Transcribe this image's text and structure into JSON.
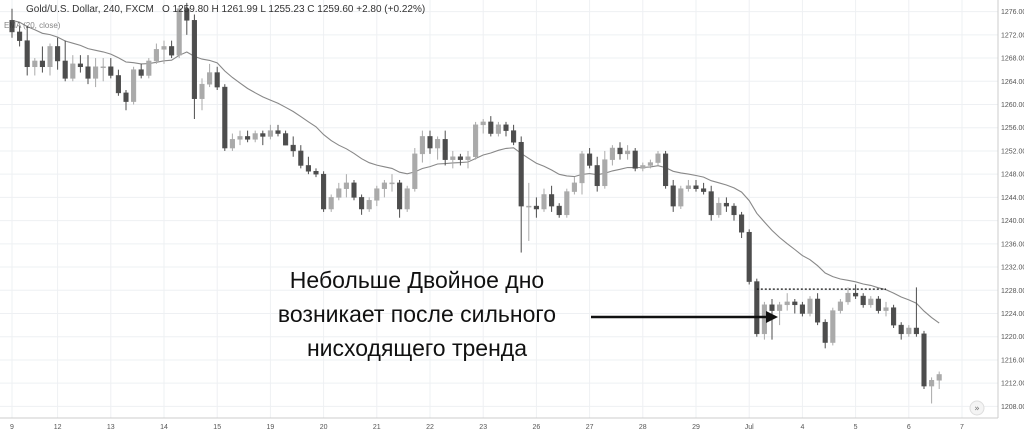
{
  "chart_data": {
    "type": "candlestick",
    "symbol_title": "Gold/U.S. Dollar, 240, FXCM",
    "ohlc_readout": "O 1259.80  H 1261.99  L 1255.23  C 1259.60  +2.80 (+0.22%)",
    "indicator_label": "EMA (20, close)",
    "y_ticks": [
      1276.0,
      1272.0,
      1268.0,
      1264.0,
      1260.0,
      1256.0,
      1252.0,
      1248.0,
      1244.0,
      1240.0,
      1236.0,
      1232.0,
      1228.0,
      1224.0,
      1220.0,
      1216.0,
      1212.0,
      1208.0
    ],
    "ylim": [
      1206,
      1278
    ],
    "x_ticks": [
      "9",
      "12",
      "13",
      "14",
      "15",
      "19",
      "20",
      "21",
      "22",
      "23",
      "26",
      "27",
      "28",
      "29",
      "Jul",
      "4",
      "5",
      "6",
      "7"
    ],
    "x_tick_index": [
      0,
      6,
      13,
      20,
      27,
      34,
      41,
      48,
      55,
      62,
      69,
      76,
      83,
      90,
      97,
      104,
      111,
      118,
      125
    ],
    "double_bottom_level": 1228.2,
    "double_bottom_range": [
      98,
      115
    ],
    "annotation_lines": [
      "Небольше Двойное дно",
      "возникает после сильного",
      "нисходящего тренда"
    ],
    "colors": {
      "bull": "#aaaaaa",
      "bear": "#4d4d4d",
      "ema": "#888888",
      "grid": "#eef0f3"
    },
    "candles": [
      [
        1274.5,
        1276.5,
        1271.5,
        1272.5
      ],
      [
        1272.5,
        1273.5,
        1270,
        1271
      ],
      [
        1271,
        1273.5,
        1265,
        1266.5
      ],
      [
        1266.5,
        1268,
        1265,
        1267.5
      ],
      [
        1267.5,
        1270,
        1265.5,
        1266.5
      ],
      [
        1266.5,
        1270.5,
        1265,
        1270
      ],
      [
        1270,
        1271.5,
        1266,
        1267.5
      ],
      [
        1267.5,
        1271,
        1264,
        1264.5
      ],
      [
        1264.5,
        1268.5,
        1264,
        1267
      ],
      [
        1267,
        1268.5,
        1265.5,
        1266.5
      ],
      [
        1266.5,
        1268.5,
        1263.5,
        1264.5
      ],
      [
        1264.5,
        1268,
        1263,
        1266.5
      ],
      [
        1266.5,
        1268,
        1264,
        1266.5
      ],
      [
        1266.5,
        1268,
        1264.5,
        1265
      ],
      [
        1265,
        1266,
        1261.5,
        1262
      ],
      [
        1262,
        1262.5,
        1259,
        1260.5
      ],
      [
        1260.5,
        1266.5,
        1260,
        1266
      ],
      [
        1266,
        1267,
        1264.5,
        1265
      ],
      [
        1265,
        1268,
        1264.5,
        1267.5
      ],
      [
        1267.5,
        1270.5,
        1267,
        1269.5
      ],
      [
        1269.5,
        1271,
        1267,
        1270
      ],
      [
        1270,
        1271,
        1268,
        1268.5
      ],
      [
        1268.5,
        1277,
        1268,
        1276.5
      ],
      [
        1276.5,
        1277.5,
        1272,
        1274.5
      ],
      [
        1274.5,
        1275.5,
        1257.5,
        1261
      ],
      [
        1261,
        1264.5,
        1259,
        1263.5
      ],
      [
        1263.5,
        1267,
        1263,
        1265.5
      ],
      [
        1265.5,
        1266.5,
        1262.5,
        1263
      ],
      [
        1263,
        1263.5,
        1252,
        1252.5
      ],
      [
        1252.5,
        1255,
        1252,
        1254
      ],
      [
        1254,
        1255.5,
        1253,
        1254.5
      ],
      [
        1254.5,
        1255.5,
        1253.5,
        1254
      ],
      [
        1254,
        1255.5,
        1253.5,
        1255
      ],
      [
        1255,
        1255.5,
        1253,
        1254.5
      ],
      [
        1254.5,
        1256.5,
        1254,
        1255.5
      ],
      [
        1255.5,
        1256.5,
        1254.5,
        1255
      ],
      [
        1255,
        1255.5,
        1253,
        1253
      ],
      [
        1253,
        1254.5,
        1251,
        1252
      ],
      [
        1252,
        1253,
        1249,
        1249.5
      ],
      [
        1249.5,
        1251,
        1248,
        1248.5
      ],
      [
        1248.5,
        1249,
        1247.5,
        1248
      ],
      [
        1248,
        1248.5,
        1241.5,
        1242
      ],
      [
        1242,
        1244.5,
        1241.5,
        1244
      ],
      [
        1244,
        1246.5,
        1243.5,
        1245.5
      ],
      [
        1245.5,
        1248,
        1244,
        1246.5
      ],
      [
        1246.5,
        1247,
        1243.5,
        1244
      ],
      [
        1244,
        1244.5,
        1241,
        1242
      ],
      [
        1242,
        1244,
        1241.5,
        1243.5
      ],
      [
        1243.5,
        1246,
        1242.5,
        1245.5
      ],
      [
        1245.5,
        1247,
        1244,
        1246.5
      ],
      [
        1246.5,
        1248,
        1245,
        1246.5
      ],
      [
        1246.5,
        1247,
        1240.5,
        1242
      ],
      [
        1242,
        1246,
        1241.5,
        1245.5
      ],
      [
        1245.5,
        1252.5,
        1245,
        1251.5
      ],
      [
        1251.5,
        1255.5,
        1250,
        1254.5
      ],
      [
        1254.5,
        1255.5,
        1251.5,
        1252.5
      ],
      [
        1252.5,
        1254.5,
        1250.5,
        1254
      ],
      [
        1254,
        1255.5,
        1249.5,
        1250.5
      ],
      [
        1250.5,
        1252,
        1249,
        1251
      ],
      [
        1251,
        1251.5,
        1249.5,
        1250.5
      ],
      [
        1250.5,
        1252,
        1249,
        1251
      ],
      [
        1251,
        1257,
        1250.5,
        1256.5
      ],
      [
        1256.5,
        1257.5,
        1255,
        1257
      ],
      [
        1257,
        1258,
        1254.5,
        1255
      ],
      [
        1255,
        1257,
        1254.5,
        1256.5
      ],
      [
        1256.5,
        1257,
        1254.5,
        1255.5
      ],
      [
        1255.5,
        1256.5,
        1253,
        1253.5
      ],
      [
        1253.5,
        1254.5,
        1234.5,
        1242.5
      ],
      [
        1242.5,
        1246.5,
        1236.5,
        1242.5
      ],
      [
        1242.5,
        1244,
        1240.5,
        1242
      ],
      [
        1242,
        1245.5,
        1241.5,
        1244.5
      ],
      [
        1244.5,
        1246,
        1241.5,
        1242.5
      ],
      [
        1242.5,
        1243,
        1240.5,
        1241
      ],
      [
        1241,
        1245.5,
        1240.5,
        1245
      ],
      [
        1245,
        1247.5,
        1244.5,
        1246.5
      ],
      [
        1246.5,
        1252,
        1244.5,
        1251.5
      ],
      [
        1251.5,
        1252.5,
        1249,
        1249.5
      ],
      [
        1249.5,
        1251,
        1245,
        1246
      ],
      [
        1246,
        1252,
        1245.5,
        1250.5
      ],
      [
        1250.5,
        1253,
        1249.5,
        1252.5
      ],
      [
        1252.5,
        1253.5,
        1250.5,
        1251.5
      ],
      [
        1251.5,
        1253,
        1250.5,
        1252
      ],
      [
        1252,
        1252.5,
        1248.5,
        1249
      ],
      [
        1249,
        1250,
        1248.5,
        1249.5
      ],
      [
        1249.5,
        1250.5,
        1249,
        1250
      ],
      [
        1250,
        1252,
        1249.5,
        1251.5
      ],
      [
        1251.5,
        1252,
        1245.5,
        1246
      ],
      [
        1246,
        1247,
        1241.5,
        1242.5
      ],
      [
        1242.5,
        1246,
        1242,
        1245.5
      ],
      [
        1245.5,
        1247,
        1245,
        1246
      ],
      [
        1246,
        1247,
        1245,
        1245.5
      ],
      [
        1245.5,
        1246.5,
        1244.5,
        1245
      ],
      [
        1245,
        1246,
        1240,
        1241
      ],
      [
        1241,
        1244,
        1240.5,
        1243
      ],
      [
        1243,
        1244,
        1241.5,
        1242.5
      ],
      [
        1242.5,
        1243,
        1240,
        1241
      ],
      [
        1241,
        1241.5,
        1237,
        1238
      ],
      [
        1238,
        1238.5,
        1229,
        1229.5
      ],
      [
        1229.5,
        1230,
        1220,
        1220.5
      ],
      [
        1220.5,
        1226,
        1219.5,
        1225.5
      ],
      [
        1225.5,
        1226.5,
        1219.5,
        1224.5
      ],
      [
        1224.5,
        1226,
        1222,
        1225.5
      ],
      [
        1225.5,
        1227.5,
        1224.5,
        1226
      ],
      [
        1226,
        1226.5,
        1224,
        1225.5
      ],
      [
        1225.5,
        1226,
        1223.5,
        1224
      ],
      [
        1224,
        1227,
        1223.5,
        1226.5
      ],
      [
        1226.5,
        1227.5,
        1222,
        1222.5
      ],
      [
        1222.5,
        1223,
        1218,
        1219
      ],
      [
        1219,
        1225,
        1218.5,
        1224.5
      ],
      [
        1224.5,
        1226.5,
        1224,
        1226
      ],
      [
        1226,
        1228.5,
        1225.5,
        1227.5
      ],
      [
        1227.5,
        1229,
        1226.5,
        1227
      ],
      [
        1227,
        1227.5,
        1225,
        1225.5
      ],
      [
        1225.5,
        1227,
        1225,
        1226.5
      ],
      [
        1226.5,
        1227,
        1224,
        1224.5
      ],
      [
        1224.5,
        1226,
        1223.5,
        1225
      ],
      [
        1225,
        1225.5,
        1221.5,
        1222
      ],
      [
        1222,
        1222.5,
        1219.5,
        1220.5
      ],
      [
        1220.5,
        1222,
        1220,
        1221.5
      ],
      [
        1221.5,
        1228.5,
        1220,
        1220.5
      ],
      [
        1220.5,
        1221,
        1211,
        1211.5
      ],
      [
        1211.5,
        1213,
        1208.5,
        1212.5
      ],
      [
        1212.5,
        1214,
        1211,
        1213.5
      ]
    ]
  }
}
